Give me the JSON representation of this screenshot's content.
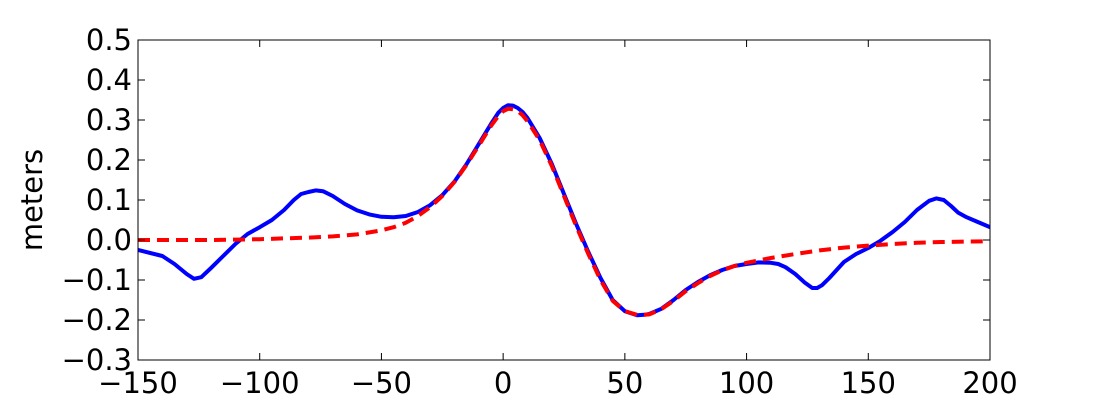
{
  "chart_data": {
    "type": "line",
    "title": "",
    "xlabel": "",
    "ylabel": "meters",
    "xlim": [
      -150,
      200
    ],
    "ylim": [
      -0.3,
      0.5
    ],
    "x_ticks": [
      -150,
      -100,
      -50,
      0,
      50,
      100,
      150,
      200
    ],
    "x_tick_labels": [
      "−150",
      "−100",
      "−50",
      "0",
      "50",
      "100",
      "150",
      "200"
    ],
    "y_ticks": [
      -0.3,
      -0.2,
      -0.1,
      0.0,
      0.1,
      0.2,
      0.3,
      0.4,
      0.5
    ],
    "y_tick_labels": [
      "−0.3",
      "−0.2",
      "−0.1",
      "0.0",
      "0.1",
      "0.2",
      "0.3",
      "0.4",
      "0.5"
    ],
    "grid": false,
    "legend": "none",
    "series": [
      {
        "color": "#0000ff",
        "style": "solid",
        "x": [
          -150,
          -140,
          -135,
          -130,
          -127,
          -124,
          -120,
          -115,
          -110,
          -105,
          -100,
          -95,
          -90,
          -86,
          -83,
          -80,
          -77,
          -74,
          -70,
          -65,
          -60,
          -55,
          -50,
          -45,
          -40,
          -35,
          -30,
          -25,
          -20,
          -15,
          -10,
          -5,
          -2,
          0,
          2,
          4,
          6,
          8,
          10,
          15,
          20,
          25,
          30,
          35,
          40,
          45,
          50,
          55,
          58,
          60,
          65,
          70,
          75,
          80,
          85,
          90,
          95,
          100,
          105,
          110,
          113,
          116,
          120,
          124,
          127,
          129,
          131,
          134,
          137,
          140,
          145,
          150,
          155,
          160,
          165,
          170,
          175,
          178,
          181,
          184,
          187,
          190,
          195,
          200
        ],
        "y": [
          -0.025,
          -0.04,
          -0.06,
          -0.085,
          -0.097,
          -0.093,
          -0.07,
          -0.04,
          -0.01,
          0.015,
          0.032,
          0.05,
          0.075,
          0.1,
          0.115,
          0.12,
          0.124,
          0.122,
          0.11,
          0.09,
          0.074,
          0.064,
          0.058,
          0.057,
          0.06,
          0.07,
          0.087,
          0.112,
          0.146,
          0.19,
          0.24,
          0.29,
          0.318,
          0.33,
          0.337,
          0.336,
          0.33,
          0.32,
          0.305,
          0.255,
          0.19,
          0.115,
          0.04,
          -0.03,
          -0.095,
          -0.15,
          -0.178,
          -0.188,
          -0.187,
          -0.185,
          -0.172,
          -0.15,
          -0.125,
          -0.105,
          -0.088,
          -0.075,
          -0.065,
          -0.06,
          -0.056,
          -0.057,
          -0.06,
          -0.068,
          -0.085,
          -0.107,
          -0.12,
          -0.12,
          -0.113,
          -0.095,
          -0.075,
          -0.055,
          -0.035,
          -0.02,
          -0.002,
          0.02,
          0.045,
          0.075,
          0.098,
          0.104,
          0.1,
          0.085,
          0.068,
          0.058,
          0.045,
          0.032
        ]
      },
      {
        "color": "#ff0000",
        "style": "dashed",
        "x": [
          -150,
          -140,
          -130,
          -120,
          -110,
          -100,
          -90,
          -80,
          -70,
          -60,
          -50,
          -45,
          -40,
          -35,
          -30,
          -25,
          -20,
          -15,
          -10,
          -5,
          -2,
          0,
          2,
          4,
          6,
          8,
          10,
          15,
          20,
          25,
          30,
          35,
          40,
          45,
          50,
          55,
          58,
          60,
          65,
          70,
          75,
          80,
          85,
          90,
          95,
          100,
          110,
          120,
          130,
          140,
          150,
          160,
          170,
          180,
          190,
          200
        ],
        "y": [
          0.0,
          0.0,
          0.0,
          0.0,
          0.001,
          0.002,
          0.004,
          0.006,
          0.009,
          0.014,
          0.024,
          0.032,
          0.043,
          0.06,
          0.082,
          0.11,
          0.145,
          0.188,
          0.236,
          0.285,
          0.31,
          0.322,
          0.328,
          0.327,
          0.322,
          0.312,
          0.297,
          0.25,
          0.185,
          0.11,
          0.035,
          -0.035,
          -0.1,
          -0.152,
          -0.178,
          -0.187,
          -0.187,
          -0.186,
          -0.173,
          -0.152,
          -0.128,
          -0.108,
          -0.09,
          -0.076,
          -0.065,
          -0.057,
          -0.045,
          -0.035,
          -0.026,
          -0.019,
          -0.014,
          -0.01,
          -0.007,
          -0.005,
          -0.004,
          -0.003
        ]
      }
    ]
  }
}
